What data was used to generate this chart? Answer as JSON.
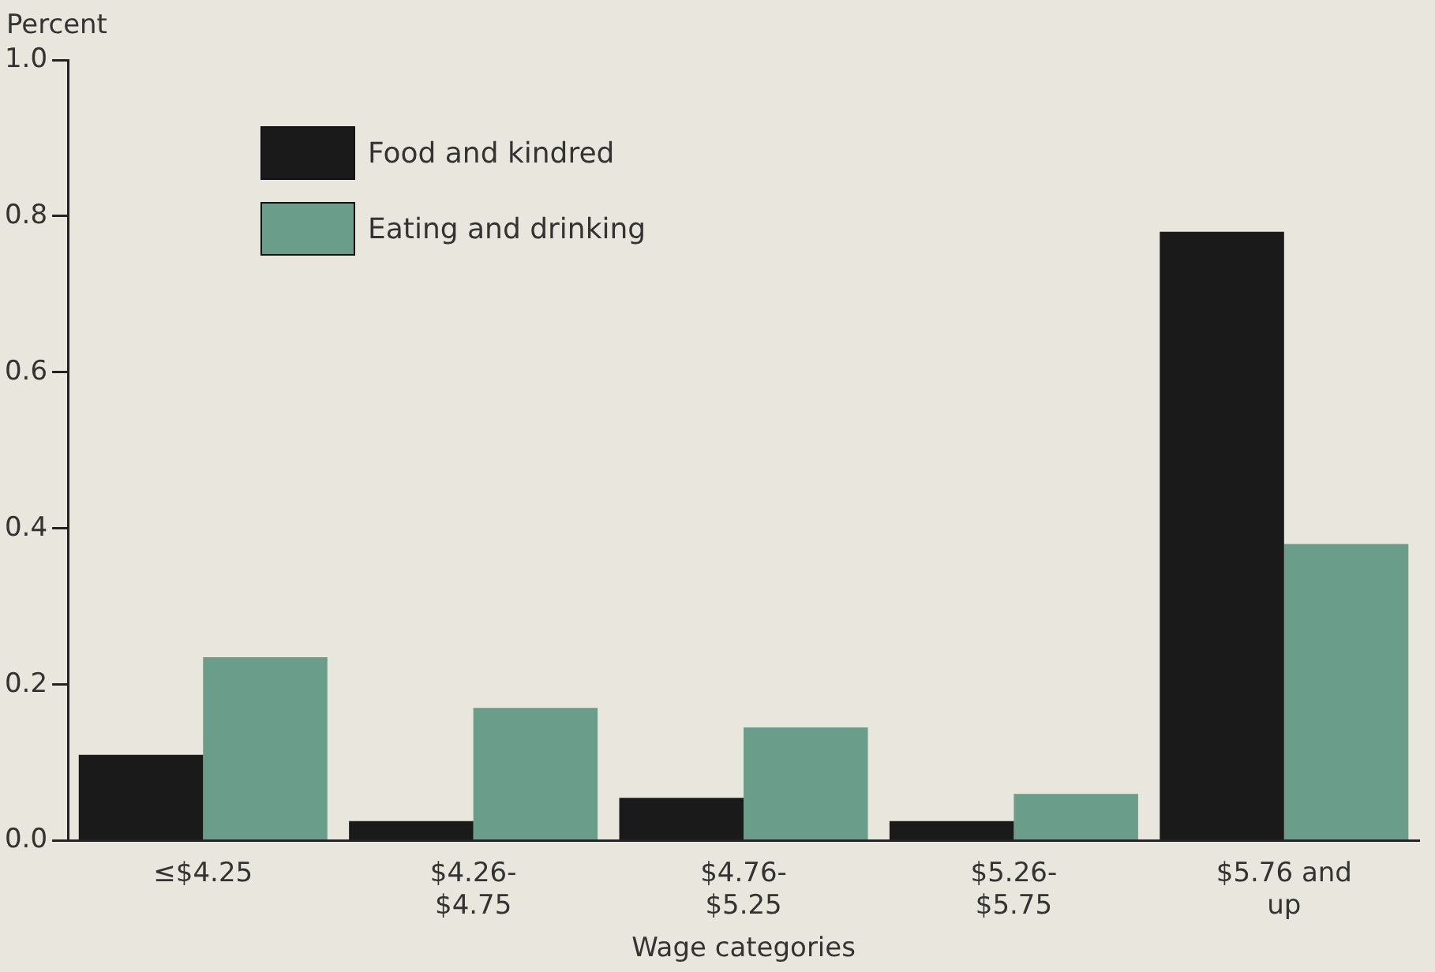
{
  "chart_data": {
    "type": "bar",
    "xlabel": "Wage categories",
    "ylabel": "Percent",
    "categories": [
      "≤$4.25",
      "$4.26-\n$4.75",
      "$4.76-\n$5.25",
      "$5.26-\n$5.75",
      "$5.76 and\nup"
    ],
    "series": [
      {
        "name": "Food and kindred",
        "color": "#1a1a1a",
        "values": [
          0.11,
          0.025,
          0.055,
          0.025,
          0.78
        ]
      },
      {
        "name": "Eating and drinking",
        "color": "#6a9e8a",
        "values": [
          0.235,
          0.17,
          0.145,
          0.06,
          0.38
        ]
      }
    ],
    "ylim": [
      0,
      1
    ],
    "yticks": [
      {
        "value": 0,
        "label": "0.0"
      },
      0.2,
      0.4,
      0.6,
      0.8,
      {
        "value": 1,
        "label": "1.0"
      }
    ],
    "legend": "top left"
  }
}
